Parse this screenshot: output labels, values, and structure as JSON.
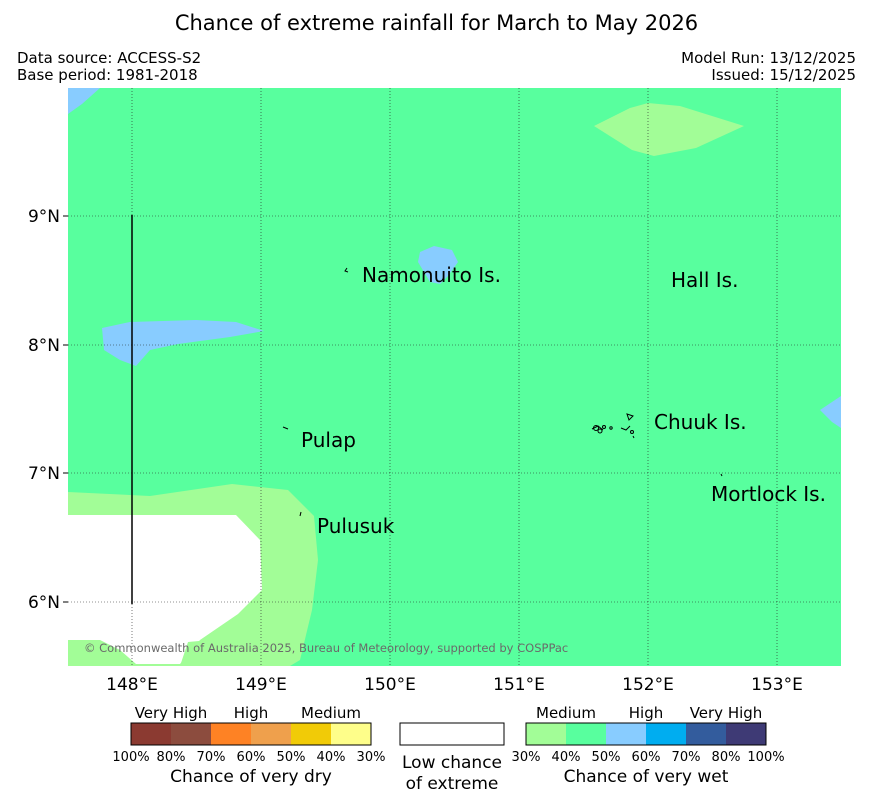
{
  "header": {
    "title": "Chance of extreme rainfall for March to May 2026",
    "data_source": "Data source: ACCESS-S2",
    "base_period": "Base period: 1981-2018",
    "model_run": "Model Run: 13/12/2025",
    "issued": "Issued: 15/12/2025"
  },
  "map": {
    "extent": {
      "lon": [
        147.5,
        153.5
      ],
      "lat": [
        5.5,
        10.0
      ]
    },
    "lon_ticks": [
      "148°E",
      "149°E",
      "150°E",
      "151°E",
      "152°E",
      "153°E"
    ],
    "lat_ticks": [
      "9°N",
      "8°N",
      "7°N",
      "6°N"
    ],
    "place_labels": [
      "Namonuito Is.",
      "Hall Is.",
      "Chuuk Is.",
      "Pulap",
      "Mortlock Is.",
      "Pulusuk"
    ],
    "copyright": "© Commonwealth of Australia 2025, Bureau of Meteorology, supported by COSPPac",
    "colors": {
      "background": "#58ff9e",
      "wet_medium": "#a2fd97",
      "wet_high": "#88ccff",
      "low_chance": "#ffffff"
    }
  },
  "legend": {
    "dry": {
      "categories": [
        "Very High",
        "High",
        "Medium"
      ],
      "ticks": [
        "100%",
        "80%",
        "70%",
        "60%",
        "50%",
        "40%",
        "30%"
      ],
      "colors": [
        "#8b3a31",
        "#8c4c3e",
        "#fe8224",
        "#efa04c",
        "#f1cb07",
        "#fefe8a"
      ],
      "caption": "Chance of very dry"
    },
    "low": {
      "caption_line1": "Low chance",
      "caption_line2": "of extreme"
    },
    "wet": {
      "categories": [
        "Medium",
        "High",
        "Very High"
      ],
      "ticks": [
        "30%",
        "40%",
        "50%",
        "60%",
        "70%",
        "80%",
        "100%"
      ],
      "colors": [
        "#a2fd97",
        "#58ff9e",
        "#88ccff",
        "#00adf0",
        "#335c9d",
        "#3e3a75"
      ],
      "caption": "Chance of very wet"
    }
  }
}
